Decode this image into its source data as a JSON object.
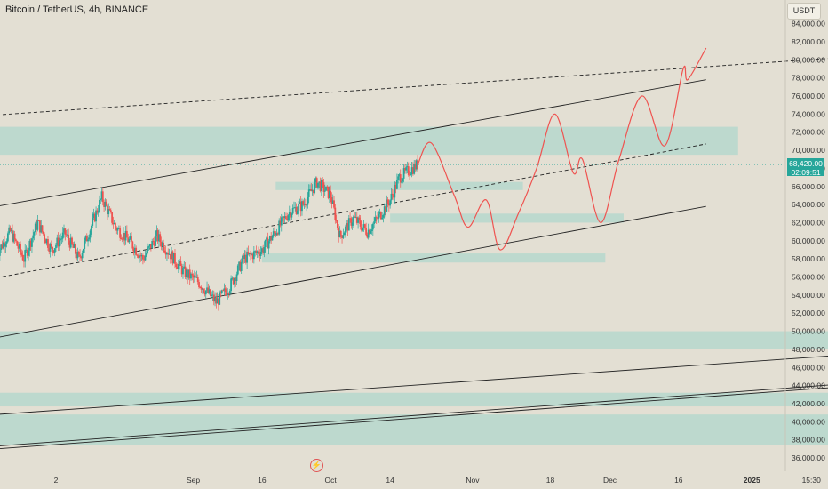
{
  "header": {
    "symbol_title": "Bitcoin / TetherUS, 4h, BINANCE",
    "currency": "USDT"
  },
  "price_badge": {
    "price": "68,420.00",
    "countdown": "02:09:51",
    "color": "#26a69a"
  },
  "icons": {
    "flash": "⚡"
  },
  "chart_data": {
    "type": "candlestick",
    "symbol": "BTCUSDT",
    "timeframe": "4h",
    "exchange": "BINANCE",
    "ylim": [
      35000,
      86000
    ],
    "y_ticks": [
      36000,
      38000,
      40000,
      42000,
      44000,
      46000,
      48000,
      50000,
      52000,
      54000,
      56000,
      58000,
      60000,
      62000,
      64000,
      66000,
      68000,
      70000,
      72000,
      74000,
      76000,
      78000,
      80000,
      82000,
      84000
    ],
    "y_tick_labels": [
      "36,000.00",
      "38,000.00",
      "40,000.00",
      "42,000.00",
      "44,000.00",
      "46,000.00",
      "48,000.00",
      "50,000.00",
      "52,000.00",
      "54,000.00",
      "56,000.00",
      "58,000.00",
      "60,000.00",
      "62,000.00",
      "64,000.00",
      "66,000.00",
      "68,000.00",
      "70,000.00",
      "72,000.00",
      "74,000.00",
      "76,000.00",
      "78,000.00",
      "80,000.00",
      "82,000.00",
      "84,000.00"
    ],
    "x_ticks": [
      {
        "label": "2",
        "date": "2024-08-02"
      },
      {
        "label": "Sep",
        "date": "2024-09-01"
      },
      {
        "label": "16",
        "date": "2024-09-16"
      },
      {
        "label": "Oct",
        "date": "2024-10-01"
      },
      {
        "label": "14",
        "date": "2024-10-14"
      },
      {
        "label": "Nov",
        "date": "2024-11-01"
      },
      {
        "label": "18",
        "date": "2024-11-18"
      },
      {
        "label": "Dec",
        "date": "2024-12-01"
      },
      {
        "label": "16",
        "date": "2024-12-16"
      },
      {
        "label": "2025",
        "date": "2025-01-01",
        "bold": true
      },
      {
        "label": "15:30",
        "date": "2025-01-14"
      }
    ],
    "last_price": 68420,
    "price_path": [
      {
        "date": "2024-07-20",
        "price": 58500
      },
      {
        "date": "2024-07-23",
        "price": 61000
      },
      {
        "date": "2024-07-26",
        "price": 58000
      },
      {
        "date": "2024-07-29",
        "price": 62000
      },
      {
        "date": "2024-08-01",
        "price": 59000
      },
      {
        "date": "2024-08-04",
        "price": 60800
      },
      {
        "date": "2024-08-07",
        "price": 58000
      },
      {
        "date": "2024-08-10",
        "price": 62000
      },
      {
        "date": "2024-08-12",
        "price": 64800
      },
      {
        "date": "2024-08-15",
        "price": 61500
      },
      {
        "date": "2024-08-18",
        "price": 60000
      },
      {
        "date": "2024-08-21",
        "price": 58000
      },
      {
        "date": "2024-08-24",
        "price": 60500
      },
      {
        "date": "2024-08-27",
        "price": 58500
      },
      {
        "date": "2024-08-30",
        "price": 56500
      },
      {
        "date": "2024-09-02",
        "price": 55500
      },
      {
        "date": "2024-09-06",
        "price": 53200
      },
      {
        "date": "2024-09-09",
        "price": 55000
      },
      {
        "date": "2024-09-12",
        "price": 58000
      },
      {
        "date": "2024-09-16",
        "price": 59000
      },
      {
        "date": "2024-09-19",
        "price": 61000
      },
      {
        "date": "2024-09-22",
        "price": 63200
      },
      {
        "date": "2024-09-25",
        "price": 64000
      },
      {
        "date": "2024-09-28",
        "price": 66500
      },
      {
        "date": "2024-10-01",
        "price": 65000
      },
      {
        "date": "2024-10-03",
        "price": 60500
      },
      {
        "date": "2024-10-06",
        "price": 62500
      },
      {
        "date": "2024-10-09",
        "price": 61000
      },
      {
        "date": "2024-10-12",
        "price": 63000
      },
      {
        "date": "2024-10-14",
        "price": 64500
      },
      {
        "date": "2024-10-16",
        "price": 67000
      },
      {
        "date": "2024-10-20",
        "price": 68400
      }
    ],
    "projection_path": [
      {
        "date": "2024-10-20",
        "price": 68400
      },
      {
        "date": "2024-10-23",
        "price": 70800
      },
      {
        "date": "2024-10-28",
        "price": 65000
      },
      {
        "date": "2024-10-31",
        "price": 61500
      },
      {
        "date": "2024-11-04",
        "price": 64500
      },
      {
        "date": "2024-11-07",
        "price": 59000
      },
      {
        "date": "2024-11-11",
        "price": 63000
      },
      {
        "date": "2024-11-15",
        "price": 68000
      },
      {
        "date": "2024-11-19",
        "price": 74000
      },
      {
        "date": "2024-11-23",
        "price": 67500
      },
      {
        "date": "2024-11-25",
        "price": 69000
      },
      {
        "date": "2024-11-29",
        "price": 62000
      },
      {
        "date": "2024-12-03",
        "price": 69000
      },
      {
        "date": "2024-12-08",
        "price": 76000
      },
      {
        "date": "2024-12-13",
        "price": 70500
      },
      {
        "date": "2024-12-17",
        "price": 79000
      },
      {
        "date": "2024-12-18",
        "price": 77800
      },
      {
        "date": "2024-12-22",
        "price": 81300
      }
    ],
    "zones": [
      {
        "from": "2024-07-20",
        "to": "2024-12-29",
        "low": 69500,
        "high": 72600
      },
      {
        "from": "2024-09-19",
        "to": "2024-11-12",
        "low": 65600,
        "high": 66500
      },
      {
        "from": "2024-10-14",
        "to": "2024-12-04",
        "low": 62000,
        "high": 63000
      },
      {
        "from": "2024-09-16",
        "to": "2024-11-30",
        "low": 57600,
        "high": 58600
      },
      {
        "from": "2024-07-20",
        "to": "2025-01-19",
        "low": 48000,
        "high": 50000
      },
      {
        "from": "2024-07-20",
        "to": "2025-01-19",
        "low": 41700,
        "high": 43200
      },
      {
        "from": "2024-07-20",
        "to": "2025-01-19",
        "low": 37400,
        "high": 40800
      }
    ],
    "trend_lines": [
      {
        "from": {
          "date": "2024-07-20",
          "price": 63800
        },
        "to": {
          "date": "2024-12-22",
          "price": 77800
        },
        "style": "solid"
      },
      {
        "from": {
          "date": "2024-07-20",
          "price": 49300
        },
        "to": {
          "date": "2024-12-22",
          "price": 63800
        },
        "style": "solid"
      },
      {
        "from": {
          "date": "2024-07-20",
          "price": 55900
        },
        "to": {
          "date": "2024-12-22",
          "price": 70700
        },
        "style": "dashed"
      },
      {
        "from": {
          "date": "2024-07-20",
          "price": 73900
        },
        "to": {
          "date": "2025-01-19",
          "price": 80200
        },
        "style": "dashed"
      },
      {
        "from": {
          "date": "2024-07-20",
          "price": 40800
        },
        "to": {
          "date": "2025-01-19",
          "price": 47300
        },
        "style": "solid"
      },
      {
        "from": {
          "date": "2024-07-20",
          "price": 37000
        },
        "to": {
          "date": "2025-01-19",
          "price": 43800
        },
        "style": "solid"
      },
      {
        "from": {
          "date": "2024-07-20",
          "price": 37300
        },
        "to": {
          "date": "2025-01-19",
          "price": 44100
        },
        "style": "solid"
      }
    ],
    "colors": {
      "background": "#e3dfd3",
      "zone": "#9fd4cb",
      "up_candle": "#26a69a",
      "down_candle": "#ef5350",
      "projection": "#ef5350",
      "trend_line": "#222222"
    }
  }
}
